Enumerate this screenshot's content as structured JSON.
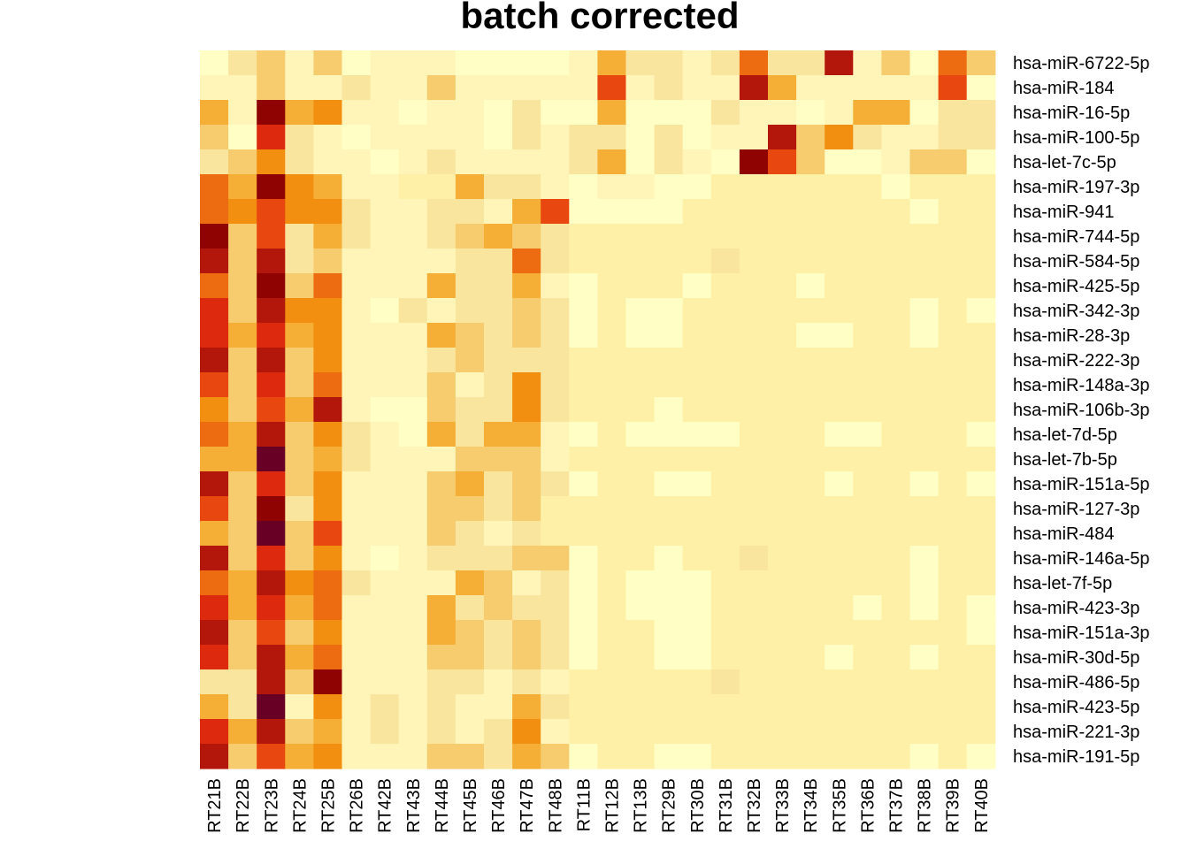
{
  "chart_data": {
    "type": "heatmap",
    "title": "batch corrected",
    "xlabel": "",
    "ylabel": "",
    "palette": [
      "#fffec4",
      "#fff5b8",
      "#fff0a8",
      "#fae59f",
      "#f6cc6e",
      "#f5ae36",
      "#f28f10",
      "#ed6c11",
      "#e8470f",
      "#dd2a0e",
      "#b3170b",
      "#8f0303",
      "#680026"
    ],
    "columns": [
      "RT21B",
      "RT22B",
      "RT23B",
      "RT24B",
      "RT25B",
      "RT26B",
      "RT42B",
      "RT43B",
      "RT44B",
      "RT45B",
      "RT46B",
      "RT47B",
      "RT48B",
      "RT11B",
      "RT12B",
      "RT13B",
      "RT29B",
      "RT30B",
      "RT31B",
      "RT32B",
      "RT33B",
      "RT34B",
      "RT35B",
      "RT36B",
      "RT37B",
      "RT38B",
      "RT39B",
      "RT40B"
    ],
    "rows": [
      "hsa-miR-6722-5p",
      "hsa-miR-184",
      "hsa-miR-16-5p",
      "hsa-miR-100-5p",
      "hsa-let-7c-5p",
      "hsa-miR-197-3p",
      "hsa-miR-941",
      "hsa-miR-744-5p",
      "hsa-miR-584-5p",
      "hsa-miR-425-5p",
      "hsa-miR-342-3p",
      "hsa-miR-28-3p",
      "hsa-miR-222-3p",
      "hsa-miR-148a-3p",
      "hsa-miR-106b-3p",
      "hsa-let-7d-5p",
      "hsa-let-7b-5p",
      "hsa-miR-151a-5p",
      "hsa-miR-127-3p",
      "hsa-miR-484",
      "hsa-miR-146a-5p",
      "hsa-let-7f-5p",
      "hsa-miR-423-3p",
      "hsa-miR-151a-3p",
      "hsa-miR-30d-5p",
      "hsa-miR-486-5p",
      "hsa-miR-423-5p",
      "hsa-miR-221-3p",
      "hsa-miR-191-5p"
    ],
    "values": [
      [
        0,
        3,
        4,
        1,
        4,
        0,
        1,
        1,
        1,
        0,
        0,
        0,
        0,
        1,
        5,
        3,
        3,
        1,
        3,
        7,
        3,
        3,
        10,
        1,
        4,
        0,
        7,
        4
      ],
      [
        1,
        1,
        4,
        1,
        1,
        3,
        1,
        1,
        4,
        1,
        1,
        1,
        1,
        1,
        8,
        1,
        3,
        1,
        1,
        10,
        5,
        1,
        1,
        1,
        1,
        1,
        8,
        0
      ],
      [
        5,
        1,
        11,
        5,
        6,
        1,
        1,
        0,
        1,
        1,
        0,
        3,
        0,
        0,
        5,
        0,
        0,
        0,
        3,
        1,
        1,
        0,
        1,
        5,
        5,
        0,
        3,
        3
      ],
      [
        4,
        0,
        9,
        3,
        1,
        0,
        1,
        1,
        1,
        1,
        0,
        3,
        1,
        3,
        3,
        0,
        3,
        0,
        1,
        1,
        10,
        4,
        6,
        3,
        1,
        1,
        3,
        3
      ],
      [
        3,
        4,
        6,
        3,
        1,
        1,
        0,
        1,
        3,
        1,
        1,
        1,
        1,
        3,
        5,
        0,
        3,
        1,
        0,
        11,
        8,
        4,
        0,
        0,
        1,
        4,
        4,
        0
      ],
      [
        7,
        5,
        11,
        6,
        5,
        1,
        1,
        2,
        2,
        5,
        3,
        3,
        1,
        0,
        1,
        1,
        0,
        0,
        2,
        2,
        2,
        2,
        2,
        2,
        0,
        2,
        2,
        2
      ],
      [
        7,
        6,
        8,
        6,
        6,
        3,
        1,
        1,
        3,
        3,
        1,
        5,
        8,
        0,
        0,
        0,
        0,
        2,
        2,
        2,
        2,
        2,
        2,
        2,
        2,
        0,
        2,
        2
      ],
      [
        11,
        4,
        8,
        3,
        5,
        3,
        1,
        1,
        3,
        4,
        5,
        4,
        3,
        2,
        2,
        2,
        2,
        2,
        2,
        2,
        2,
        2,
        2,
        2,
        2,
        2,
        2,
        2
      ],
      [
        10,
        4,
        10,
        3,
        4,
        1,
        1,
        1,
        1,
        3,
        3,
        7,
        3,
        2,
        2,
        2,
        2,
        2,
        3,
        2,
        2,
        2,
        2,
        2,
        2,
        2,
        2,
        2
      ],
      [
        7,
        4,
        11,
        4,
        7,
        1,
        1,
        1,
        5,
        3,
        3,
        5,
        1,
        0,
        2,
        2,
        2,
        0,
        2,
        2,
        2,
        0,
        2,
        2,
        2,
        2,
        2,
        2
      ],
      [
        9,
        4,
        10,
        6,
        6,
        1,
        0,
        3,
        1,
        3,
        3,
        4,
        3,
        0,
        2,
        0,
        0,
        2,
        2,
        2,
        2,
        2,
        2,
        2,
        2,
        0,
        2,
        0
      ],
      [
        9,
        5,
        9,
        5,
        6,
        1,
        1,
        1,
        5,
        4,
        3,
        4,
        3,
        0,
        2,
        0,
        0,
        2,
        2,
        2,
        2,
        0,
        0,
        2,
        2,
        0,
        2,
        2
      ],
      [
        10,
        4,
        10,
        4,
        6,
        1,
        1,
        1,
        3,
        4,
        3,
        3,
        3,
        2,
        2,
        2,
        2,
        2,
        2,
        2,
        2,
        2,
        2,
        2,
        2,
        2,
        2,
        2
      ],
      [
        8,
        4,
        9,
        4,
        7,
        1,
        1,
        1,
        4,
        1,
        3,
        6,
        3,
        2,
        2,
        2,
        2,
        2,
        2,
        2,
        2,
        2,
        2,
        2,
        2,
        2,
        2,
        2
      ],
      [
        6,
        4,
        8,
        5,
        10,
        1,
        0,
        0,
        4,
        3,
        3,
        6,
        3,
        2,
        2,
        2,
        0,
        2,
        2,
        2,
        2,
        2,
        2,
        2,
        2,
        2,
        2,
        2
      ],
      [
        7,
        5,
        10,
        4,
        6,
        3,
        1,
        0,
        5,
        3,
        5,
        5,
        1,
        0,
        2,
        0,
        0,
        0,
        0,
        2,
        2,
        2,
        0,
        0,
        2,
        2,
        2,
        0
      ],
      [
        5,
        5,
        12,
        4,
        5,
        3,
        1,
        1,
        1,
        4,
        4,
        4,
        1,
        2,
        2,
        2,
        2,
        2,
        2,
        2,
        2,
        2,
        2,
        2,
        2,
        2,
        2,
        2
      ],
      [
        10,
        4,
        9,
        4,
        6,
        1,
        1,
        1,
        4,
        5,
        3,
        4,
        3,
        0,
        2,
        2,
        0,
        0,
        2,
        2,
        2,
        2,
        0,
        2,
        2,
        0,
        2,
        0
      ],
      [
        8,
        4,
        11,
        3,
        6,
        1,
        1,
        1,
        4,
        4,
        3,
        4,
        2,
        2,
        2,
        2,
        2,
        2,
        2,
        2,
        2,
        2,
        2,
        2,
        2,
        2,
        2,
        2
      ],
      [
        5,
        4,
        12,
        4,
        8,
        1,
        1,
        1,
        4,
        3,
        1,
        3,
        2,
        2,
        2,
        2,
        2,
        2,
        2,
        2,
        2,
        2,
        2,
        2,
        2,
        2,
        2,
        2
      ],
      [
        10,
        4,
        9,
        4,
        6,
        1,
        0,
        1,
        3,
        3,
        3,
        4,
        4,
        0,
        2,
        2,
        0,
        2,
        2,
        3,
        2,
        2,
        2,
        2,
        2,
        0,
        2,
        2
      ],
      [
        7,
        5,
        10,
        6,
        7,
        3,
        1,
        1,
        1,
        5,
        4,
        1,
        3,
        0,
        2,
        0,
        0,
        0,
        2,
        2,
        2,
        2,
        2,
        2,
        2,
        0,
        2,
        2
      ],
      [
        9,
        5,
        9,
        5,
        7,
        1,
        1,
        1,
        5,
        3,
        4,
        3,
        3,
        0,
        2,
        0,
        0,
        0,
        2,
        2,
        2,
        2,
        2,
        0,
        2,
        0,
        2,
        0
      ],
      [
        10,
        4,
        8,
        4,
        6,
        1,
        1,
        1,
        5,
        4,
        3,
        4,
        3,
        0,
        2,
        2,
        0,
        0,
        2,
        2,
        2,
        2,
        2,
        2,
        2,
        2,
        2,
        0
      ],
      [
        9,
        4,
        10,
        5,
        7,
        1,
        1,
        1,
        4,
        4,
        3,
        4,
        3,
        0,
        2,
        2,
        0,
        0,
        2,
        2,
        2,
        2,
        0,
        2,
        2,
        0,
        2,
        2
      ],
      [
        3,
        3,
        10,
        4,
        11,
        1,
        1,
        1,
        3,
        3,
        1,
        3,
        1,
        2,
        2,
        2,
        2,
        2,
        3,
        2,
        2,
        2,
        2,
        2,
        2,
        2,
        2,
        2
      ],
      [
        5,
        3,
        12,
        1,
        6,
        1,
        3,
        1,
        3,
        1,
        1,
        5,
        3,
        2,
        2,
        2,
        2,
        2,
        2,
        2,
        2,
        2,
        2,
        2,
        2,
        2,
        2,
        2
      ],
      [
        9,
        5,
        10,
        4,
        5,
        1,
        3,
        1,
        3,
        1,
        3,
        6,
        1,
        2,
        2,
        2,
        2,
        2,
        2,
        2,
        2,
        2,
        2,
        2,
        2,
        2,
        2,
        2
      ],
      [
        10,
        4,
        8,
        5,
        6,
        1,
        1,
        1,
        4,
        4,
        3,
        5,
        4,
        0,
        2,
        2,
        0,
        0,
        2,
        2,
        2,
        2,
        2,
        2,
        2,
        0,
        2,
        0
      ]
    ]
  }
}
